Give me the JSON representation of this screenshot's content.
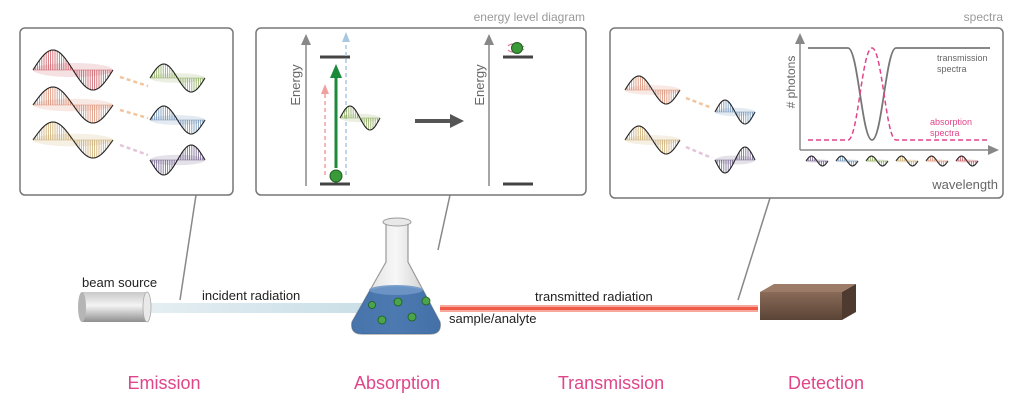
{
  "panels": {
    "emission": {
      "title": ""
    },
    "absorption": {
      "title": "energy level diagram",
      "axis_left": "Energy",
      "axis_right": "Energy"
    },
    "spectra": {
      "title": "spectra",
      "ylabel": "# photons",
      "xlabel": "wavelength",
      "transmission_label_1": "transmission",
      "transmission_label_2": "spectra",
      "absorption_label_1": "absorption",
      "absorption_label_2": "spectra",
      "transmission_color": "#777777",
      "absorption_color": "#e0458a"
    }
  },
  "apparatus": {
    "beam_source": "beam source",
    "incident": "incident radiation",
    "transmitted": "transmitted radiation",
    "sample": "sample/analyte",
    "beam_color": "#f36b5a",
    "liquid_color": "#2e63a3"
  },
  "stages": [
    "Emission",
    "Absorption",
    "Transmission",
    "Detection"
  ],
  "stage_color": "#e0458a",
  "wave_colors": {
    "red": "#c9545c",
    "orange": "#d9876a",
    "yellow": "#c9a869",
    "green": "#8aa85a",
    "blue": "#6a8db3",
    "purple": "#6b5b86"
  }
}
